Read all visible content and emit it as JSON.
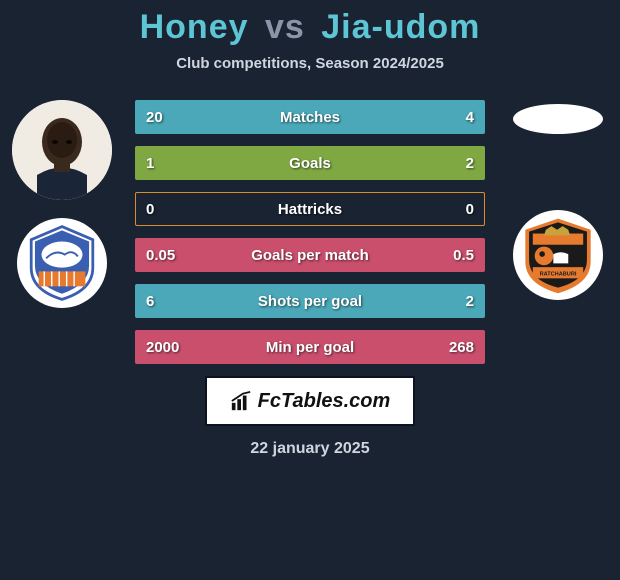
{
  "title": {
    "player1": "Honey",
    "vs": "vs",
    "player2": "Jia-udom"
  },
  "subtitle": "Club competitions, Season 2024/2025",
  "colors": {
    "background": "#1a2332",
    "accent": "#5ec5d4",
    "muted": "#8a96a8",
    "text": "#d0d6e0",
    "white": "#ffffff"
  },
  "player1": {
    "name": "Honey",
    "avatar_bg": "#2a2018",
    "club_colors": {
      "primary": "#3a5fb0",
      "secondary": "#e67a2e",
      "accent": "#ffffff"
    }
  },
  "player2": {
    "name": "Jia-udom",
    "avatar_empty": true,
    "club_colors": {
      "primary": "#e67a2e",
      "secondary": "#1a1a1a",
      "accent": "#ffffff"
    }
  },
  "stats": [
    {
      "label": "Matches",
      "left_val": "20",
      "right_val": "4",
      "left_pct": 83,
      "right_pct": 17,
      "color": "#4aa8b8"
    },
    {
      "label": "Goals",
      "left_val": "1",
      "right_val": "2",
      "left_pct": 33,
      "right_pct": 67,
      "color": "#7fa843"
    },
    {
      "label": "Hattricks",
      "left_val": "0",
      "right_val": "0",
      "left_pct": 0,
      "right_pct": 0,
      "color": "#d98c2e"
    },
    {
      "label": "Goals per match",
      "left_val": "0.05",
      "right_val": "0.5",
      "left_pct": 9,
      "right_pct": 91,
      "color": "#c94f6d"
    },
    {
      "label": "Shots per goal",
      "left_val": "6",
      "right_val": "2",
      "left_pct": 75,
      "right_pct": 25,
      "color": "#4aa8b8"
    },
    {
      "label": "Min per goal",
      "left_val": "2000",
      "right_val": "268",
      "left_pct": 88,
      "right_pct": 12,
      "color": "#c94f6d"
    }
  ],
  "footer": {
    "brand": "FcTables.com"
  },
  "date": "22 january 2025"
}
